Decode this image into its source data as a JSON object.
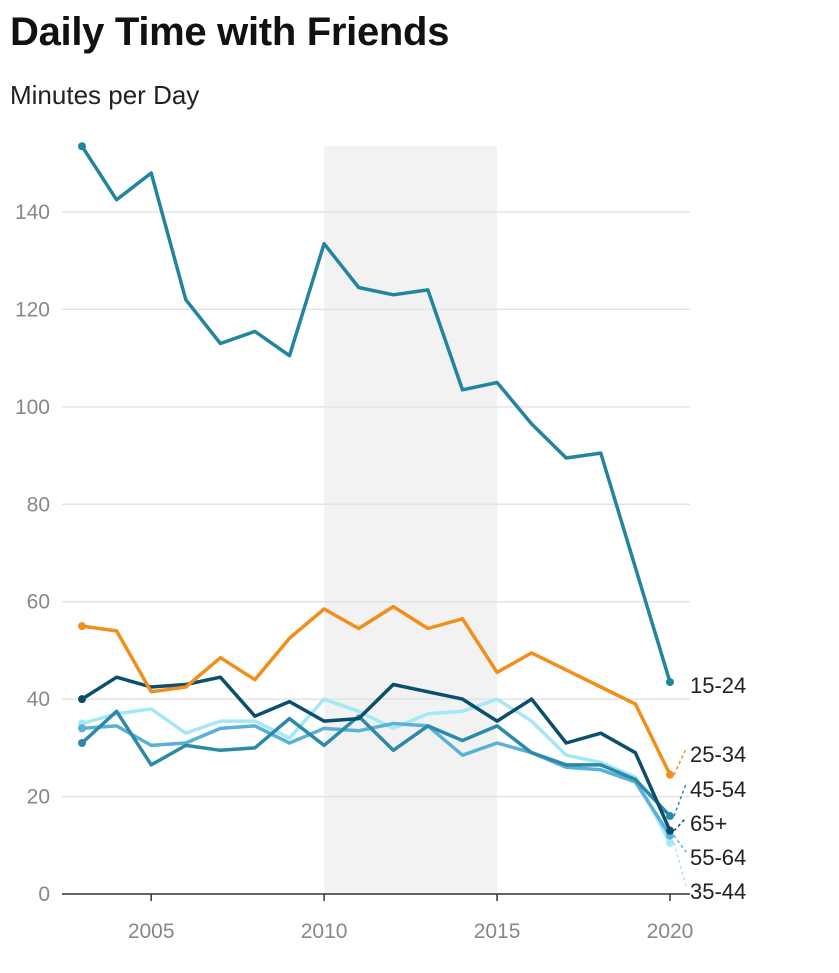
{
  "title": "Daily Time with Friends",
  "subtitle": "Minutes per Day",
  "chart_data": {
    "type": "line",
    "title": "Daily Time with Friends",
    "ylabel": "Minutes per Day",
    "xlabel": "",
    "xlim": [
      2003,
      2020
    ],
    "ylim": [
      0,
      150
    ],
    "x_ticks": [
      2005,
      2010,
      2015,
      2020
    ],
    "y_ticks": [
      0,
      20,
      40,
      60,
      80,
      100,
      120,
      140
    ],
    "grid": "horizontal",
    "highlight_band": [
      2010,
      2015
    ],
    "x": [
      2003,
      2004,
      2005,
      2006,
      2007,
      2008,
      2009,
      2010,
      2011,
      2012,
      2013,
      2014,
      2015,
      2016,
      2017,
      2018,
      2019,
      2020
    ],
    "series": [
      {
        "name": "15-24",
        "color": "#21859e",
        "values": [
          153.5,
          142.5,
          148,
          122,
          113,
          115.5,
          110.5,
          133.5,
          124.5,
          123,
          124,
          103.5,
          105,
          96.5,
          89.5,
          90.5,
          67,
          43.5
        ]
      },
      {
        "name": "25-34",
        "color": "#f28e1b",
        "values": [
          55,
          54,
          41.5,
          42.5,
          48.5,
          44,
          52.5,
          58.5,
          54.5,
          59,
          54.5,
          56.5,
          45.5,
          49.5,
          46,
          42.5,
          39,
          24.5
        ]
      },
      {
        "name": "45-54",
        "color": "#2a8aa8",
        "values": [
          31,
          37.5,
          26.5,
          30.5,
          29.5,
          30,
          36,
          30.5,
          36.5,
          29.5,
          34.5,
          31.5,
          34.5,
          29,
          26.5,
          26.5,
          23.5,
          16
        ]
      },
      {
        "name": "65+",
        "color": "#0b4f6c",
        "values": [
          40,
          44.5,
          42.5,
          43,
          44.5,
          36.5,
          39.5,
          35.5,
          36,
          43,
          41.5,
          40,
          35.5,
          40,
          31,
          33,
          29,
          13
        ]
      },
      {
        "name": "55-64",
        "color": "#5bb0d5",
        "values": [
          34,
          34.5,
          30.5,
          31,
          34,
          34.5,
          31,
          34,
          33.5,
          35,
          34.5,
          28.5,
          31,
          29,
          26,
          25.5,
          23,
          12
        ]
      },
      {
        "name": "35-44",
        "color": "#a2e8f7",
        "values": [
          35,
          37,
          38,
          33,
          35.5,
          35.5,
          32,
          40,
          37.5,
          34,
          37,
          37.5,
          40,
          35.5,
          28.5,
          27,
          24,
          10.5
        ]
      }
    ]
  }
}
